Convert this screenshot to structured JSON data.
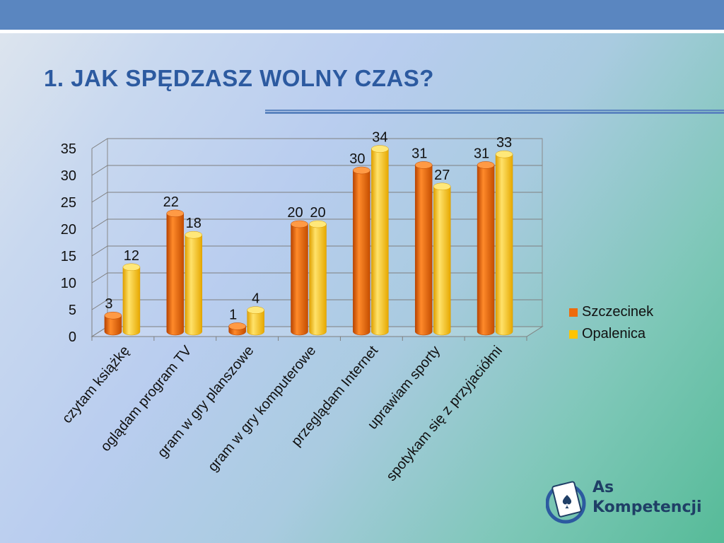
{
  "slide": {
    "title": "1. JAK SPĘDZASZ WOLNY CZAS?"
  },
  "logo": {
    "line1": "As",
    "line2": "Kompetencji"
  },
  "colors": {
    "top_bar": "#5a86c0",
    "title": "#2c5aa0",
    "series_1": "#ee6b0c",
    "series_2": "#ffc400"
  },
  "chart_data": {
    "type": "bar",
    "variant": "3d-clustered-cylinder",
    "categories": [
      "czytam książkę",
      "oglądam program TV",
      "gram w gry planszowe",
      "gram w gry komputerowe",
      "przeglądam Internet",
      "uprawiam sporty",
      "spotykam się z przyjaciółmi"
    ],
    "series": [
      {
        "name": "Szczecinek",
        "values": [
          3,
          22,
          1,
          20,
          30,
          31,
          31
        ]
      },
      {
        "name": "Opalenica",
        "values": [
          12,
          18,
          4,
          20,
          34,
          27,
          33
        ]
      }
    ],
    "ylim": [
      0,
      35
    ],
    "yticks": [
      0,
      5,
      10,
      15,
      20,
      25,
      30,
      35
    ],
    "grid": true,
    "data_labels": true,
    "legend_position": "right"
  }
}
